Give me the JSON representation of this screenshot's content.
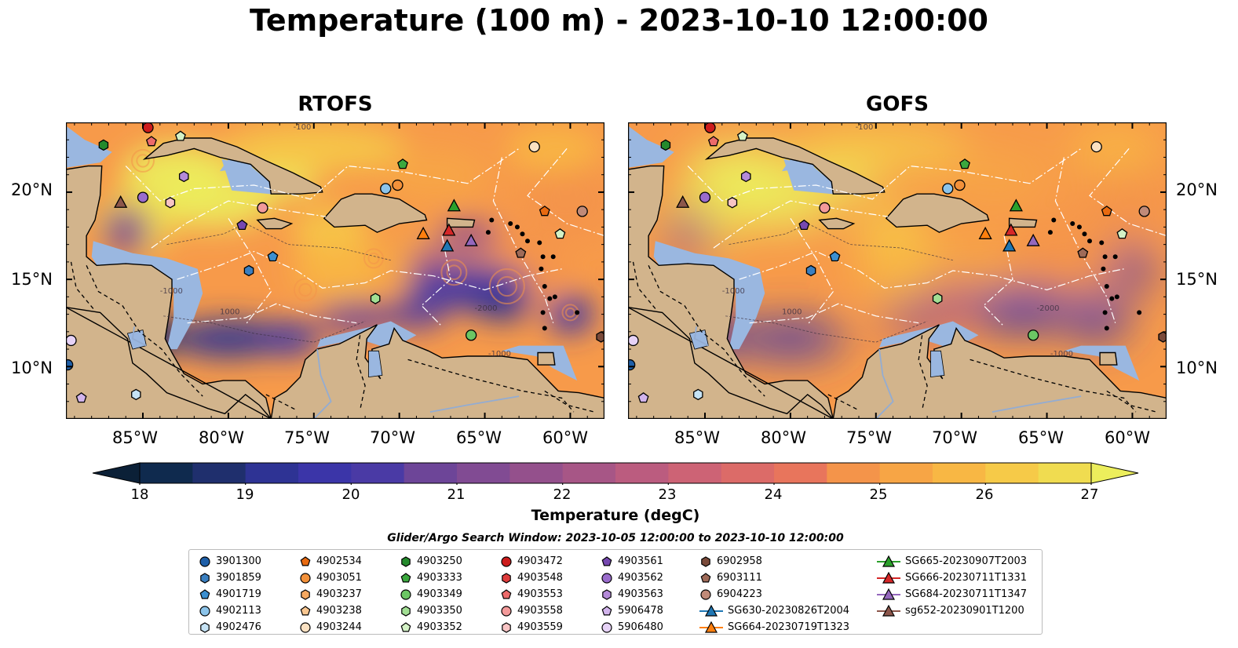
{
  "title": "Temperature (100 m) - 2023-10-10 12:00:00",
  "panels": [
    {
      "title": "RTOFS"
    },
    {
      "title": "GOFS"
    }
  ],
  "lat_ticks": [
    "20°N",
    "15°N",
    "10°N"
  ],
  "lon_ticks": [
    "85°W",
    "80°W",
    "75°W",
    "70°W",
    "65°W",
    "60°W"
  ],
  "colorbar": {
    "label": "Temperature (degC)",
    "ticks": [
      "18",
      "19",
      "20",
      "21",
      "22",
      "23",
      "24",
      "25",
      "26",
      "27"
    ],
    "colors": [
      "#0b2037",
      "#0f2a4e",
      "#1f2f6d",
      "#2e3394",
      "#3b35a8",
      "#4a3aa5",
      "#5a3f9e",
      "#6d4598",
      "#814b93",
      "#94508c",
      "#a75686",
      "#bb5c7f",
      "#cd6375",
      "#dc6b68",
      "#e8755c",
      "#f08452",
      "#f4944a",
      "#f7a545",
      "#f8b744",
      "#f6ca48",
      "#f0dc50",
      "#ecee5c"
    ],
    "min": 18,
    "max": 27,
    "extend": "both"
  },
  "search_window": "Glider/Argo Search Window: 2023-10-05 12:00:00 to 2023-10-10 12:00:00",
  "legend": {
    "columns": [
      [
        {
          "label": "3901300",
          "marker": "circle",
          "color": "#1f5fa8"
        },
        {
          "label": "3901859",
          "marker": "hexagon",
          "color": "#3a7fc0"
        },
        {
          "label": "4901719",
          "marker": "pentagon",
          "color": "#3c8fd0"
        },
        {
          "label": "4902113",
          "marker": "circle",
          "color": "#8cc4ea"
        },
        {
          "label": "4902476",
          "marker": "hexagon",
          "color": "#c6e3f5"
        }
      ],
      [
        {
          "label": "4902534",
          "marker": "pentagon",
          "color": "#e86a10"
        },
        {
          "label": "4903051",
          "marker": "circle",
          "color": "#f3913a"
        },
        {
          "label": "4903237",
          "marker": "hexagon",
          "color": "#f5a860"
        },
        {
          "label": "4903238",
          "marker": "pentagon",
          "color": "#f8c690"
        },
        {
          "label": "4903244",
          "marker": "circle",
          "color": "#fbe1c2"
        }
      ],
      [
        {
          "label": "4903250",
          "marker": "hexagon",
          "color": "#248a2c"
        },
        {
          "label": "4903333",
          "marker": "pentagon",
          "color": "#3ba83e"
        },
        {
          "label": "4903349",
          "marker": "circle",
          "color": "#6cc664"
        },
        {
          "label": "4903350",
          "marker": "hexagon",
          "color": "#a2df94"
        },
        {
          "label": "4903352",
          "marker": "pentagon",
          "color": "#d4f2c6"
        }
      ],
      [
        {
          "label": "4903472",
          "marker": "circle",
          "color": "#cc1c1c"
        },
        {
          "label": "4903548",
          "marker": "hexagon",
          "color": "#de3c3c"
        },
        {
          "label": "4903553",
          "marker": "pentagon",
          "color": "#ec6a6a"
        },
        {
          "label": "4903558",
          "marker": "circle",
          "color": "#f39a9a"
        },
        {
          "label": "4903559",
          "marker": "hexagon",
          "color": "#f8c4c4"
        }
      ],
      [
        {
          "label": "4903561",
          "marker": "pentagon",
          "color": "#7648b0"
        },
        {
          "label": "4903562",
          "marker": "circle",
          "color": "#9a6ccc"
        },
        {
          "label": "4903563",
          "marker": "hexagon",
          "color": "#b48ad8"
        },
        {
          "label": "5906478",
          "marker": "pentagon",
          "color": "#d2b4ec"
        },
        {
          "label": "5906480",
          "marker": "circle",
          "color": "#e6d2f6"
        }
      ],
      [
        {
          "label": "6902958",
          "marker": "hexagon",
          "color": "#7a4a3a"
        },
        {
          "label": "6903111",
          "marker": "pentagon",
          "color": "#9e6a58"
        },
        {
          "label": "6904223",
          "marker": "circle",
          "color": "#c08a78"
        },
        {
          "label": "SG630-20230826T2004",
          "marker": "triangle-line",
          "color": "#1f77b4"
        },
        {
          "label": "SG664-20230719T1323",
          "marker": "triangle-line",
          "color": "#ff7f0e"
        }
      ],
      [
        {
          "label": "SG665-20230907T2003",
          "marker": "triangle-line",
          "color": "#2ca02c"
        },
        {
          "label": "SG666-20230711T1331",
          "marker": "triangle-line",
          "color": "#d62728"
        },
        {
          "label": "SG684-20230711T1347",
          "marker": "triangle-line",
          "color": "#9467bd"
        },
        {
          "label": "sg652-20230901T1200",
          "marker": "triangle-line",
          "color": "#8c564b"
        }
      ]
    ]
  },
  "map_colors": {
    "land": "#d2b48c",
    "shelf": "#9ab7e0"
  },
  "chart_data": {
    "type": "heatmap",
    "variable": "Temperature (100 m)",
    "units": "degC",
    "extent": {
      "lon": [
        -89.5,
        -58.0
      ],
      "lat": [
        7.0,
        24.0
      ]
    },
    "panels": [
      "RTOFS",
      "GOFS"
    ],
    "colorbar_range": [
      18,
      27
    ],
    "markers": [
      {
        "id": "4903472",
        "lon": -84.7,
        "lat": 23.7,
        "marker": "circle",
        "color": "#cc1c1c"
      },
      {
        "id": "4903553",
        "lon": -84.5,
        "lat": 22.9,
        "marker": "pentagon",
        "color": "#ec6a6a"
      },
      {
        "id": "4903250",
        "lon": -87.3,
        "lat": 22.7,
        "marker": "hexagon",
        "color": "#248a2c"
      },
      {
        "id": "4903352",
        "lon": -82.8,
        "lat": 23.2,
        "marker": "pentagon",
        "color": "#d4f2c6"
      },
      {
        "id": "4903563",
        "lon": -82.6,
        "lat": 20.9,
        "marker": "hexagon",
        "color": "#b48ad8"
      },
      {
        "id": "4903562",
        "lon": -85.0,
        "lat": 19.7,
        "marker": "circle",
        "color": "#9a6ccc"
      },
      {
        "id": "4903559",
        "lon": -83.4,
        "lat": 19.4,
        "marker": "hexagon",
        "color": "#f8c4c4"
      },
      {
        "id": "sg652-20230901T1200",
        "lon": -86.3,
        "lat": 19.4,
        "marker": "triangle",
        "color": "#8c564b"
      },
      {
        "id": "4903558",
        "lon": -78.0,
        "lat": 19.1,
        "marker": "circle",
        "color": "#f39a9a"
      },
      {
        "id": "4903561",
        "lon": -79.2,
        "lat": 18.1,
        "marker": "pentagon",
        "color": "#7648b0"
      },
      {
        "id": "4901719",
        "lon": -77.4,
        "lat": 16.3,
        "marker": "pentagon",
        "color": "#3c8fd0"
      },
      {
        "id": "3901859",
        "lon": -78.8,
        "lat": 15.5,
        "marker": "hexagon",
        "color": "#3a7fc0"
      },
      {
        "id": "4903333",
        "lon": -69.8,
        "lat": 21.6,
        "marker": "pentagon",
        "color": "#3ba83e"
      },
      {
        "id": "4902113",
        "lon": -70.8,
        "lat": 20.2,
        "marker": "circle",
        "color": "#8cc4ea"
      },
      {
        "id": "4903051",
        "lon": -70.1,
        "lat": 20.4,
        "marker": "circle",
        "color": "#f3913a"
      },
      {
        "id": "4903244",
        "lon": -62.1,
        "lat": 22.6,
        "marker": "circle",
        "color": "#fbe1c2"
      },
      {
        "id": "4902534",
        "lon": -61.5,
        "lat": 18.9,
        "marker": "pentagon",
        "color": "#e86a10"
      },
      {
        "id": "6904223",
        "lon": -59.3,
        "lat": 18.9,
        "marker": "circle",
        "color": "#c08a78"
      },
      {
        "id": "4903352b",
        "lon": -60.6,
        "lat": 17.6,
        "marker": "pentagon",
        "color": "#d4f2c6"
      },
      {
        "id": "6903111",
        "lon": -62.9,
        "lat": 16.5,
        "marker": "pentagon",
        "color": "#9e6a58"
      },
      {
        "id": "SG664-20230719T1323",
        "lon": -68.6,
        "lat": 17.6,
        "marker": "triangle",
        "color": "#ff7f0e"
      },
      {
        "id": "SG666-20230711T1331",
        "lon": -67.1,
        "lat": 17.8,
        "marker": "triangle",
        "color": "#d62728"
      },
      {
        "id": "SG665-20230907T2003",
        "lon": -66.8,
        "lat": 19.2,
        "marker": "triangle",
        "color": "#2ca02c"
      },
      {
        "id": "SG630-20230826T2004",
        "lon": -67.2,
        "lat": 16.9,
        "marker": "triangle",
        "color": "#1f77b4"
      },
      {
        "id": "SG684-20230711T1347",
        "lon": -65.8,
        "lat": 17.2,
        "marker": "triangle",
        "color": "#9467bd"
      },
      {
        "id": "4903350",
        "lon": -71.4,
        "lat": 13.9,
        "marker": "hexagon",
        "color": "#a2df94"
      },
      {
        "id": "4903349",
        "lon": -65.8,
        "lat": 11.8,
        "marker": "circle",
        "color": "#6cc664"
      },
      {
        "id": "6902958",
        "lon": -58.2,
        "lat": 11.7,
        "marker": "hexagon",
        "color": "#7a4a3a"
      },
      {
        "id": "5906480",
        "lon": -89.2,
        "lat": 11.5,
        "marker": "circle",
        "color": "#e6d2f6"
      },
      {
        "id": "3901300",
        "lon": -89.4,
        "lat": 10.1,
        "marker": "circle",
        "color": "#1f5fa8"
      },
      {
        "id": "4902476",
        "lon": -85.4,
        "lat": 8.4,
        "marker": "hexagon",
        "color": "#c6e3f5"
      },
      {
        "id": "5906478",
        "lon": -88.6,
        "lat": 8.2,
        "marker": "pentagon",
        "color": "#d2b4ec"
      }
    ]
  }
}
